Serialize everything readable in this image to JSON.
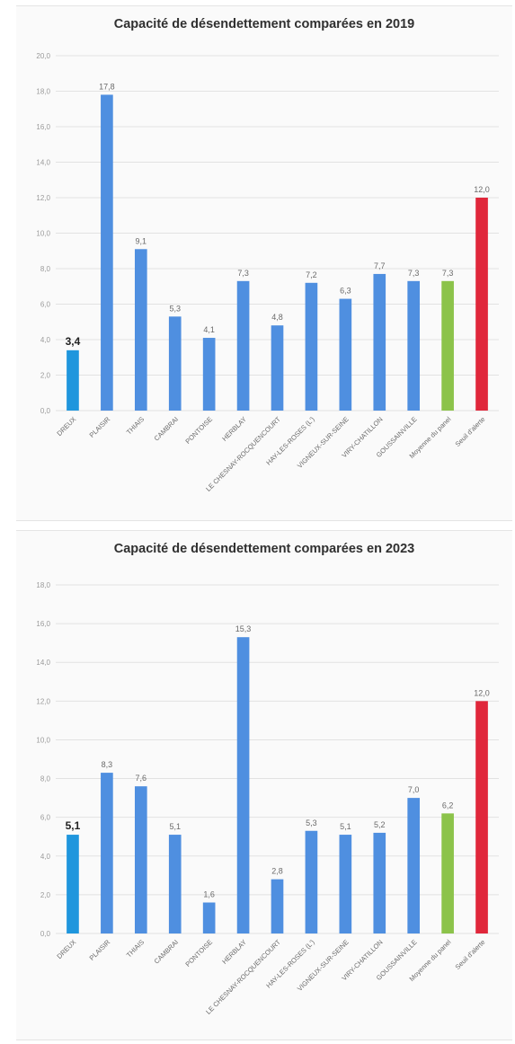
{
  "chart_data": [
    {
      "type": "bar",
      "title": "Capacité de désendettement comparées en 2019",
      "categories": [
        "DREUX",
        "PLAISIR",
        "THIAIS",
        "CAMBRAI",
        "PONTOISE",
        "HERBLAY",
        "LE CHESNAY-ROCQUENCOURT",
        "HAY-LES-ROSES (L')",
        "VIGNEUX-SUR-SEINE",
        "VIRY-CHATILLON",
        "GOUSSAINVILLE",
        "Moyenne du panel",
        "Seuil d'alerte"
      ],
      "values": [
        3.4,
        17.8,
        9.1,
        5.3,
        4.1,
        7.3,
        4.8,
        7.2,
        6.3,
        7.7,
        7.3,
        7.3,
        12.0
      ],
      "value_labels": [
        "3,4",
        "17,8",
        "9,1",
        "5,3",
        "4,1",
        "7,3",
        "4,8",
        "7,2",
        "6,3",
        "7,7",
        "7,3",
        "7,3",
        "12,0"
      ],
      "highlight_index": 0,
      "colors": [
        "#1f96dd",
        "#4f8fe0",
        "#4f8fe0",
        "#4f8fe0",
        "#4f8fe0",
        "#4f8fe0",
        "#4f8fe0",
        "#4f8fe0",
        "#4f8fe0",
        "#4f8fe0",
        "#4f8fe0",
        "#8cc34a",
        "#e0273b"
      ],
      "y_ticks": [
        "0,0",
        "2,0",
        "4,0",
        "6,0",
        "8,0",
        "10,0",
        "12,0",
        "14,0",
        "16,0",
        "18,0",
        "20,0"
      ],
      "ylim": [
        0,
        20
      ],
      "grid": true,
      "legend": "none"
    },
    {
      "type": "bar",
      "title": "Capacité de désendettement comparées en 2023",
      "categories": [
        "DREUX",
        "PLAISIR",
        "THIAIS",
        "CAMBRAI",
        "PONTOISE",
        "HERBLAY",
        "LE CHESNAY-ROCQUENCOURT",
        "HAY-LES-ROSES (L')",
        "VIGNEUX-SUR-SEINE",
        "VIRY-CHATILLON",
        "GOUSSAINVILLE",
        "Moyenne du panel",
        "Seuil d'alerte"
      ],
      "values": [
        5.1,
        8.3,
        7.6,
        5.1,
        1.6,
        15.3,
        2.8,
        5.3,
        5.1,
        5.2,
        7.0,
        6.2,
        12.0
      ],
      "value_labels": [
        "5,1",
        "8,3",
        "7,6",
        "5,1",
        "1,6",
        "15,3",
        "2,8",
        "5,3",
        "5,1",
        "5,2",
        "7,0",
        "6,2",
        "12,0"
      ],
      "highlight_index": 0,
      "colors": [
        "#1f96dd",
        "#4f8fe0",
        "#4f8fe0",
        "#4f8fe0",
        "#4f8fe0",
        "#4f8fe0",
        "#4f8fe0",
        "#4f8fe0",
        "#4f8fe0",
        "#4f8fe0",
        "#4f8fe0",
        "#8cc34a",
        "#e0273b"
      ],
      "y_ticks": [
        "0,0",
        "2,0",
        "4,0",
        "6,0",
        "8,0",
        "10,0",
        "12,0",
        "14,0",
        "16,0",
        "18,0"
      ],
      "ylim": [
        0,
        18
      ],
      "grid": true,
      "legend": "none"
    }
  ]
}
